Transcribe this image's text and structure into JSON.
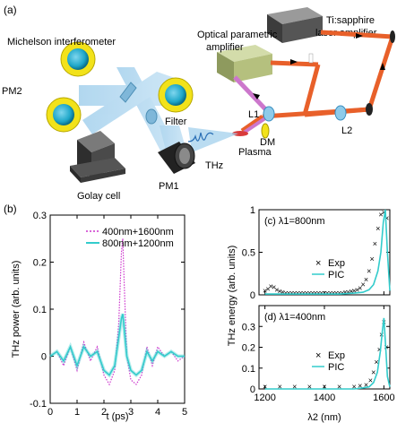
{
  "panel_a": {
    "label": "(a)",
    "michelson": "Michelson interferometer",
    "opa": [
      "Optical parametric",
      "amplifier"
    ],
    "laser": [
      "Ti:sapphire",
      "laser amplifier"
    ],
    "pm2": "PM2",
    "filter": "Filter",
    "l1": "L1",
    "l2": "L2",
    "dm": "DM",
    "plasma": "Plasma",
    "thz": "THz",
    "pm1": "PM1",
    "golay": "Golay cell",
    "colors": {
      "beam_red": "#e8602a",
      "thz_beam": "#a9d3ee",
      "pump_purple": "#cc77cc",
      "mirror_yellow": "#f2e21a",
      "lens_blue": "#8ecbea"
    }
  },
  "panel_b_label": "(b)",
  "chart_data": [
    {
      "type": "line",
      "xlabel": "t (ps)",
      "ylabel": "THz power (arb. units)",
      "xlim": [
        0,
        5
      ],
      "ylim": [
        -0.1,
        0.3
      ],
      "xticks": [
        "0",
        "1",
        "2",
        "3",
        "4",
        "5"
      ],
      "yticks": [
        "-0.1",
        "0",
        "0.1",
        "0.2",
        "0.3"
      ],
      "legend": "top-right",
      "series": [
        {
          "name": "400nm+1600nm",
          "color": "#cc33cc",
          "style": "dotted",
          "x": [
            0,
            0.25,
            0.5,
            0.75,
            1.0,
            1.25,
            1.5,
            1.75,
            2.0,
            2.2,
            2.4,
            2.55,
            2.65,
            2.7,
            2.75,
            2.85,
            3.0,
            3.2,
            3.4,
            3.6,
            3.8,
            4.0,
            4.25,
            4.5,
            4.75,
            5.0
          ],
          "y": [
            0.0,
            0.01,
            -0.02,
            0.02,
            -0.03,
            0.03,
            -0.01,
            0.02,
            -0.04,
            -0.06,
            -0.03,
            0.07,
            0.22,
            0.25,
            0.16,
            0.0,
            -0.05,
            -0.06,
            -0.04,
            0.02,
            -0.02,
            0.02,
            0.0,
            0.01,
            -0.01,
            0.0
          ]
        },
        {
          "name": "800nm+1200nm",
          "color": "#33cccc",
          "style": "solid",
          "x": [
            0,
            0.25,
            0.5,
            0.75,
            1.0,
            1.25,
            1.5,
            1.75,
            2.0,
            2.2,
            2.4,
            2.55,
            2.65,
            2.7,
            2.75,
            2.85,
            3.0,
            3.2,
            3.4,
            3.6,
            3.8,
            4.0,
            4.25,
            4.5,
            4.75,
            5.0
          ],
          "y": [
            0.0,
            0.01,
            -0.01,
            0.02,
            -0.02,
            0.02,
            0.0,
            0.01,
            -0.03,
            -0.04,
            -0.02,
            0.04,
            0.08,
            0.09,
            0.06,
            0.0,
            -0.03,
            -0.04,
            -0.03,
            0.01,
            -0.01,
            0.01,
            0.0,
            0.01,
            0.0,
            0.0
          ]
        }
      ]
    },
    {
      "type": "scatter",
      "annotation": "(c) λ1=800nm",
      "ylabel": "THz energy (arb. units)",
      "xlim": [
        1180,
        1620
      ],
      "ylim": [
        0,
        1
      ],
      "yticks": [
        "0",
        "0.5",
        "1"
      ],
      "legend": "center-right",
      "series": [
        {
          "name": "Exp",
          "color": "#cc33cc",
          "marker": "x",
          "x": [
            1200,
            1210,
            1220,
            1230,
            1240,
            1250,
            1260,
            1270,
            1280,
            1290,
            1300,
            1310,
            1320,
            1330,
            1340,
            1350,
            1360,
            1370,
            1380,
            1390,
            1400,
            1410,
            1420,
            1430,
            1440,
            1450,
            1460,
            1470,
            1480,
            1490,
            1500,
            1510,
            1520,
            1530,
            1540,
            1550,
            1560,
            1570,
            1580,
            1590,
            1600,
            1610
          ],
          "y": [
            0.05,
            0.07,
            0.1,
            0.09,
            0.06,
            0.04,
            0.03,
            0.02,
            0.02,
            0.02,
            0.02,
            0.02,
            0.02,
            0.02,
            0.02,
            0.02,
            0.02,
            0.02,
            0.02,
            0.02,
            0.02,
            0.02,
            0.02,
            0.02,
            0.02,
            0.02,
            0.02,
            0.03,
            0.03,
            0.04,
            0.05,
            0.06,
            0.08,
            0.12,
            0.18,
            0.28,
            0.42,
            0.6,
            0.78,
            0.94,
            0.97,
            0.9
          ]
        },
        {
          "name": "PIC",
          "color": "#33cccc",
          "marker": "line",
          "x": [
            1200,
            1250,
            1300,
            1350,
            1400,
            1450,
            1500,
            1530,
            1550,
            1565,
            1580,
            1590,
            1598,
            1605,
            1612,
            1620
          ],
          "y": [
            0.01,
            0.01,
            0.01,
            0.01,
            0.01,
            0.01,
            0.02,
            0.03,
            0.06,
            0.12,
            0.28,
            0.5,
            0.85,
            1.0,
            0.5,
            0.05
          ]
        }
      ]
    },
    {
      "type": "scatter",
      "annotation": "(d) λ1=400nm",
      "xlabel": "λ2 (nm)",
      "xlim": [
        1180,
        1620
      ],
      "ylim": [
        0,
        0.4
      ],
      "xticks": [
        "1200",
        "1400",
        "1600"
      ],
      "yticks": [
        "0",
        "0.1",
        "0.2",
        "0.3"
      ],
      "legend": "center-right",
      "series": [
        {
          "name": "Exp",
          "color": "#cc33cc",
          "marker": "x",
          "x": [
            1200,
            1250,
            1300,
            1350,
            1400,
            1450,
            1500,
            1520,
            1540,
            1555,
            1565,
            1575,
            1585,
            1592,
            1600,
            1608
          ],
          "y": [
            0.01,
            0.01,
            0.01,
            0.01,
            0.01,
            0.01,
            0.01,
            0.015,
            0.02,
            0.04,
            0.08,
            0.13,
            0.19,
            0.26,
            0.32,
            0.2
          ]
        },
        {
          "name": "PIC",
          "color": "#33cccc",
          "marker": "line",
          "x": [
            1200,
            1250,
            1300,
            1350,
            1400,
            1450,
            1500,
            1530,
            1550,
            1565,
            1578,
            1588,
            1595,
            1600,
            1606,
            1612,
            1620
          ],
          "y": [
            0.0,
            0.0,
            0.0,
            0.0,
            0.0,
            0.0,
            0.0,
            0.005,
            0.01,
            0.03,
            0.08,
            0.18,
            0.28,
            0.34,
            0.2,
            0.06,
            0.01
          ]
        }
      ]
    }
  ]
}
